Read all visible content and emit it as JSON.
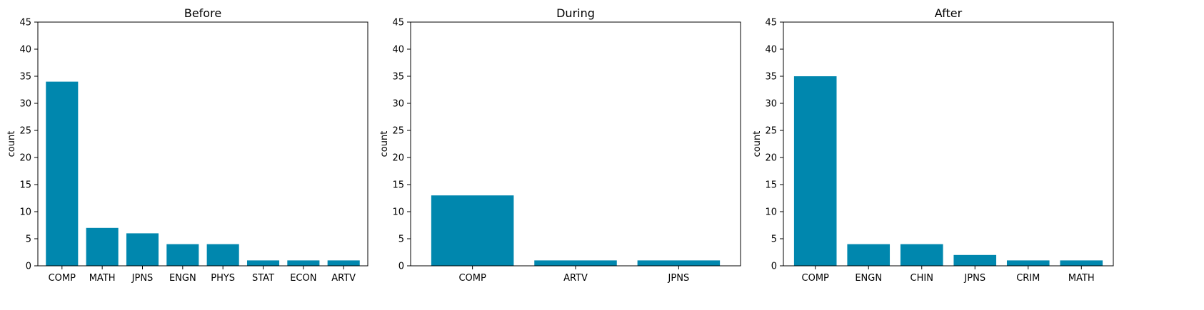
{
  "chart_data": [
    {
      "type": "bar",
      "title": "Before",
      "xlabel": "",
      "ylabel": "count",
      "ylim": [
        0,
        45
      ],
      "yticks": [
        0,
        5,
        10,
        15,
        20,
        25,
        30,
        35,
        40,
        45
      ],
      "categories": [
        "COMP",
        "MATH",
        "JPNS",
        "ENGN",
        "PHYS",
        "STAT",
        "ECON",
        "ARTV"
      ],
      "values": [
        34,
        7,
        6,
        4,
        4,
        1,
        1,
        1
      ],
      "color": "#0087ae",
      "grid": false
    },
    {
      "type": "bar",
      "title": "During",
      "xlabel": "",
      "ylabel": "count",
      "ylim": [
        0,
        45
      ],
      "yticks": [
        0,
        5,
        10,
        15,
        20,
        25,
        30,
        35,
        40,
        45
      ],
      "categories": [
        "COMP",
        "ARTV",
        "JPNS"
      ],
      "values": [
        13,
        1,
        1
      ],
      "color": "#0087ae",
      "grid": false
    },
    {
      "type": "bar",
      "title": "After",
      "xlabel": "",
      "ylabel": "count",
      "ylim": [
        0,
        45
      ],
      "yticks": [
        0,
        5,
        10,
        15,
        20,
        25,
        30,
        35,
        40,
        45
      ],
      "categories": [
        "COMP",
        "ENGN",
        "CHIN",
        "JPNS",
        "CRIM",
        "MATH"
      ],
      "values": [
        35,
        4,
        4,
        2,
        1,
        1
      ],
      "color": "#0087ae",
      "grid": false
    }
  ]
}
